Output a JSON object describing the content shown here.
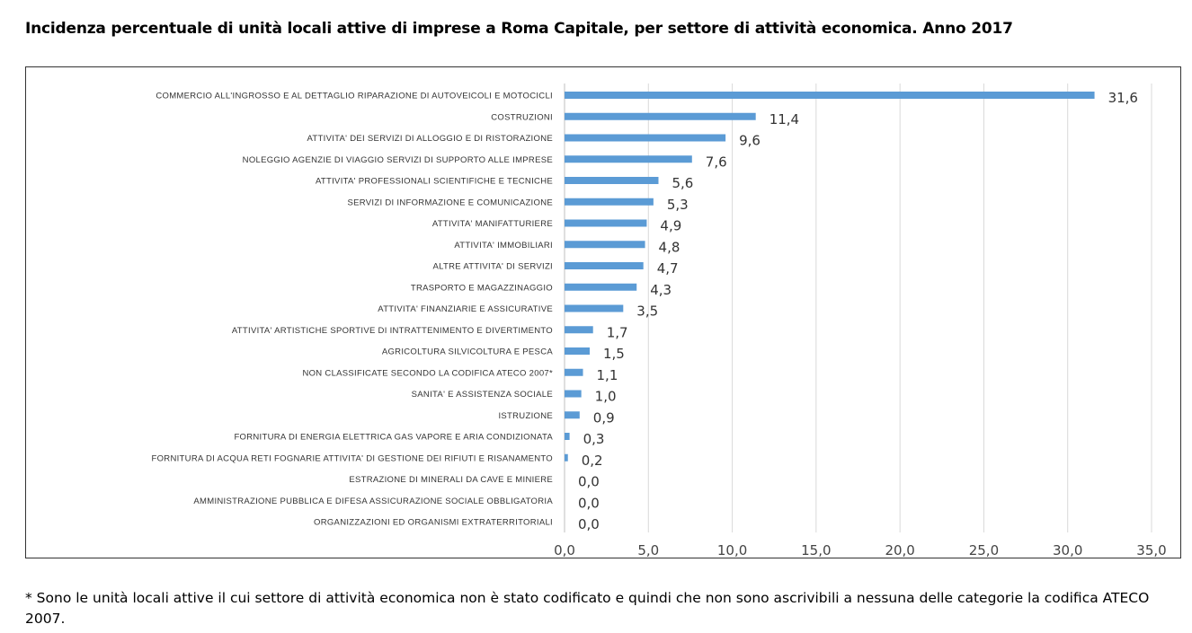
{
  "title": "Incidenza percentuale di unità locali attive di imprese a Roma Capitale, per settore di attività economica.  Anno 2017",
  "footnote": "* Sono le unità locali attive il cui settore di attività economica non è stato codificato e quindi che non sono ascrivibili a nessuna delle categorie la codifica ATECO 2007.",
  "colors": {
    "bar": "#5B9BD5",
    "grid": "#D9D9D9",
    "frame": "#333333"
  },
  "chart_data": {
    "type": "bar",
    "orientation": "horizontal",
    "title": "Incidenza percentuale di unità locali attive di imprese a Roma Capitale, per settore di attività economica.  Anno 2017",
    "xlabel": "",
    "ylabel": "",
    "xlim": [
      0,
      35
    ],
    "xticks": [
      "0,0",
      "5,0",
      "10,0",
      "15,0",
      "20,0",
      "25,0",
      "30,0",
      "35,0"
    ],
    "grid": "vertical",
    "legend": "none",
    "categories": [
      "COMMERCIO ALL'INGROSSO E AL DETTAGLIO RIPARAZIONE DI AUTOVEICOLI E MOTOCICLI",
      "COSTRUZIONI",
      "ATTIVITA' DEI SERVIZI DI ALLOGGIO E DI RISTORAZIONE",
      "NOLEGGIO AGENZIE DI VIAGGIO SERVIZI DI SUPPORTO ALLE IMPRESE",
      "ATTIVITA' PROFESSIONALI SCIENTIFICHE E TECNICHE",
      "SERVIZI DI INFORMAZIONE E COMUNICAZIONE",
      "ATTIVITA' MANIFATTURIERE",
      "ATTIVITA' IMMOBILIARI",
      "ALTRE ATTIVITA' DI SERVIZI",
      "TRASPORTO E MAGAZZINAGGIO",
      "ATTIVITA' FINANZIARIE E ASSICURATIVE",
      "ATTIVITA' ARTISTICHE SPORTIVE DI INTRATTENIMENTO E DIVERTIMENTO",
      "AGRICOLTURA SILVICOLTURA E PESCA",
      "NON CLASSIFICATE SECONDO LA CODIFICA ATECO 2007*",
      "SANITA' E ASSISTENZA SOCIALE",
      "ISTRUZIONE",
      "FORNITURA DI ENERGIA ELETTRICA GAS VAPORE E ARIA CONDIZIONATA",
      "FORNITURA DI ACQUA RETI FOGNARIE ATTIVITA' DI GESTIONE DEI RIFIUTI E RISANAMENTO",
      "ESTRAZIONE DI MINERALI DA CAVE E MINIERE",
      "AMMINISTRAZIONE PUBBLICA E DIFESA ASSICURAZIONE SOCIALE OBBLIGATORIA",
      "ORGANIZZAZIONI ED ORGANISMI EXTRATERRITORIALI"
    ],
    "values": [
      31.6,
      11.4,
      9.6,
      7.6,
      5.6,
      5.3,
      4.9,
      4.8,
      4.7,
      4.3,
      3.5,
      1.7,
      1.5,
      1.1,
      1.0,
      0.9,
      0.3,
      0.2,
      0.0,
      0.0,
      0.0
    ],
    "value_labels": [
      "31,6",
      "11,4",
      "9,6",
      "7,6",
      "5,6",
      "5,3",
      "4,9",
      "4,8",
      "4,7",
      "4,3",
      "3,5",
      "1,7",
      "1,5",
      "1,1",
      "1,0",
      "0,9",
      "0,3",
      "0,2",
      "0,0",
      "0,0",
      "0,0"
    ]
  }
}
